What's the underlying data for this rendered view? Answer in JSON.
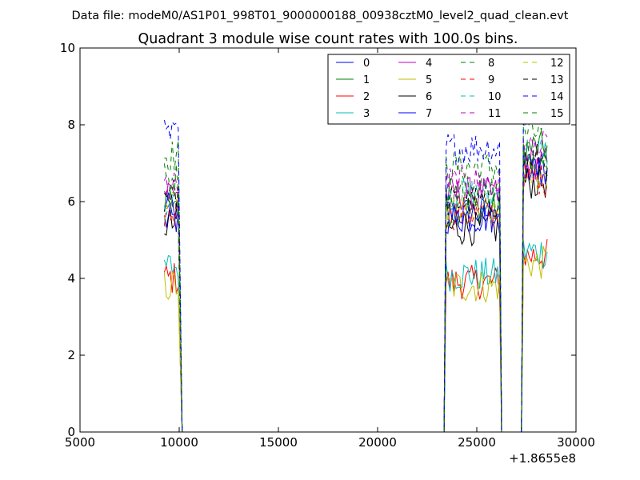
{
  "chart_data": {
    "type": "line",
    "suptitle": "Data file: modeM0/AS1P01_998T01_9000000188_00938cztM0_level2_quad_clean.evt",
    "title": "Quadrant 3 module wise count rates with 100.0s bins.",
    "xlabel": "",
    "ylabel": "",
    "xlim": [
      5000,
      30000
    ],
    "ylim": [
      0,
      10
    ],
    "x_offset_label": "+1.8655e8",
    "x_ticks": [
      5000,
      10000,
      15000,
      20000,
      25000,
      30000
    ],
    "x_tick_labels": [
      "5000",
      "10000",
      "15000",
      "20000",
      "25000",
      "30000"
    ],
    "y_ticks": [
      0,
      2,
      4,
      6,
      8,
      10
    ],
    "y_tick_labels": [
      "0",
      "2",
      "4",
      "6",
      "8",
      "10"
    ],
    "grid": false,
    "legend_position": "top-right",
    "legend_columns": 4,
    "segments": [
      {
        "start": 9250,
        "end": 10000,
        "step": 100,
        "drop_to": 10150
      },
      {
        "start": 23450,
        "end": 26150,
        "step": 100,
        "drop_to": 26250
      },
      {
        "start": 27350,
        "end": 28550,
        "step": 100,
        "drop_to": null
      }
    ],
    "series": [
      {
        "name": "0",
        "color": "#0000ff",
        "dash": "solid",
        "levels": [
          5.5,
          5.7,
          6.8
        ]
      },
      {
        "name": "1",
        "color": "#008000",
        "dash": "solid",
        "levels": [
          6.1,
          5.8,
          7.4
        ]
      },
      {
        "name": "2",
        "color": "#ff0000",
        "dash": "solid",
        "levels": [
          4.0,
          3.9,
          4.6
        ]
      },
      {
        "name": "3",
        "color": "#00bfbf",
        "dash": "solid",
        "levels": [
          4.3,
          4.1,
          4.7
        ]
      },
      {
        "name": "4",
        "color": "#bf00bf",
        "dash": "solid",
        "levels": [
          6.3,
          6.2,
          7.0
        ]
      },
      {
        "name": "5",
        "color": "#bfbf00",
        "dash": "solid",
        "levels": [
          3.8,
          3.8,
          4.4
        ]
      },
      {
        "name": "6",
        "color": "#000000",
        "dash": "solid",
        "levels": [
          5.4,
          5.3,
          6.5
        ]
      },
      {
        "name": "7",
        "color": "#0000ff",
        "dash": "solid",
        "levels": [
          5.8,
          5.6,
          6.9
        ]
      },
      {
        "name": "8",
        "color": "#008000",
        "dash": "dashed",
        "levels": [
          7.2,
          6.9,
          7.8
        ]
      },
      {
        "name": "9",
        "color": "#ff0000",
        "dash": "dashed",
        "levels": [
          5.7,
          5.7,
          6.6
        ]
      },
      {
        "name": "10",
        "color": "#00bfbf",
        "dash": "dashed",
        "levels": [
          6.0,
          6.2,
          7.3
        ]
      },
      {
        "name": "11",
        "color": "#bf00bf",
        "dash": "dashed",
        "levels": [
          6.4,
          6.5,
          7.4
        ]
      },
      {
        "name": "12",
        "color": "#bfbf00",
        "dash": "dashed",
        "levels": [
          5.8,
          5.7,
          6.7
        ]
      },
      {
        "name": "13",
        "color": "#000000",
        "dash": "dashed",
        "levels": [
          6.2,
          6.0,
          7.1
        ]
      },
      {
        "name": "14",
        "color": "#0000ff",
        "dash": "dashed",
        "levels": [
          7.7,
          7.4,
          8.3
        ]
      },
      {
        "name": "15",
        "color": "#008000",
        "dash": "dashed",
        "levels": [
          6.6,
          6.3,
          7.2
        ]
      }
    ]
  }
}
